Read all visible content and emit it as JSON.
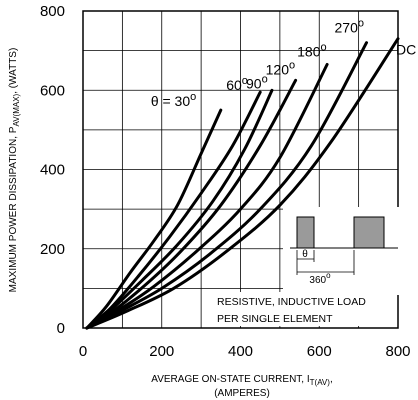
{
  "chart_data": {
    "type": "line",
    "xlabel_line1": "AVERAGE ON-STATE  CURRENT, I",
    "xlabel_sub": "T(AV)",
    "xlabel_tail": ",",
    "xlabel_line2": "(AMPERES)",
    "ylabel_main": "MAXIMUM POWER DISSIPATION, P",
    "ylabel_sub": "AV(MAX)",
    "ylabel_tail": ", (WATTS)",
    "xlim": [
      0,
      800
    ],
    "ylim": [
      0,
      800
    ],
    "xticks": [
      0,
      200,
      400,
      600,
      800
    ],
    "yticks": [
      0,
      200,
      400,
      600,
      800
    ],
    "grid": true,
    "series": [
      {
        "name": "θ = 30",
        "label_sup": "o",
        "points": [
          [
            10,
            0
          ],
          [
            60,
            55
          ],
          [
            120,
            140
          ],
          [
            180,
            220
          ],
          [
            240,
            310
          ],
          [
            300,
            440
          ],
          [
            350,
            550
          ]
        ]
      },
      {
        "name": "60",
        "label_sup": "o",
        "points": [
          [
            10,
            0
          ],
          [
            70,
            50
          ],
          [
            140,
            130
          ],
          [
            220,
            230
          ],
          [
            300,
            340
          ],
          [
            380,
            460
          ],
          [
            450,
            595
          ]
        ]
      },
      {
        "name": "90",
        "label_sup": "o",
        "points": [
          [
            10,
            0
          ],
          [
            70,
            45
          ],
          [
            150,
            120
          ],
          [
            240,
            210
          ],
          [
            330,
            320
          ],
          [
            410,
            450
          ],
          [
            480,
            600
          ]
        ]
      },
      {
        "name": "120",
        "label_sup": "o",
        "points": [
          [
            10,
            0
          ],
          [
            80,
            45
          ],
          [
            160,
            110
          ],
          [
            250,
            195
          ],
          [
            350,
            310
          ],
          [
            450,
            460
          ],
          [
            540,
            625
          ]
        ]
      },
      {
        "name": "180",
        "label_sup": "o",
        "points": [
          [
            10,
            0
          ],
          [
            90,
            45
          ],
          [
            180,
            105
          ],
          [
            290,
            195
          ],
          [
            400,
            300
          ],
          [
            500,
            430
          ],
          [
            620,
            665
          ]
        ]
      },
      {
        "name": "270",
        "label_sup": "o",
        "points": [
          [
            10,
            0
          ],
          [
            100,
            45
          ],
          [
            200,
            100
          ],
          [
            320,
            185
          ],
          [
            450,
            300
          ],
          [
            580,
            460
          ],
          [
            720,
            720
          ]
        ]
      },
      {
        "name": "DC",
        "label_sup": "",
        "points": [
          [
            10,
            0
          ],
          [
            110,
            42
          ],
          [
            230,
            100
          ],
          [
            360,
            190
          ],
          [
            500,
            310
          ],
          [
            630,
            470
          ],
          [
            800,
            730
          ]
        ]
      }
    ],
    "annotation_line1": "RESISTIVE, INDUCTIVE LOAD",
    "annotation_line2": "PER SINGLE ELEMENT",
    "inset_theta": "θ",
    "inset_period": "360",
    "inset_period_sup": "o"
  }
}
